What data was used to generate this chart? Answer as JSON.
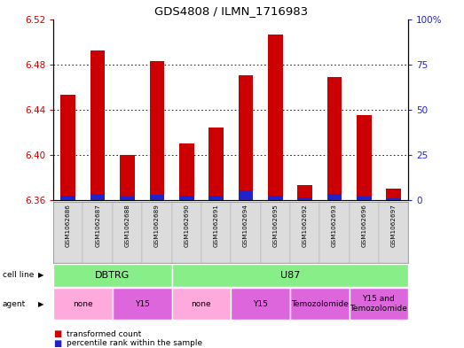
{
  "title": "GDS4808 / ILMN_1716983",
  "samples": [
    "GSM1062686",
    "GSM1062687",
    "GSM1062688",
    "GSM1062689",
    "GSM1062690",
    "GSM1062691",
    "GSM1062694",
    "GSM1062695",
    "GSM1062692",
    "GSM1062693",
    "GSM1062696",
    "GSM1062697"
  ],
  "red_values": [
    6.453,
    6.492,
    6.4,
    6.483,
    6.41,
    6.424,
    6.47,
    6.506,
    6.373,
    6.469,
    6.435,
    6.37
  ],
  "blue_values": [
    2.5,
    3.5,
    2.0,
    3.0,
    2.5,
    2.5,
    5.5,
    2.5,
    1.5,
    3.5,
    2.0,
    1.0
  ],
  "ymin": 6.36,
  "ymax": 6.52,
  "yticks": [
    6.36,
    6.4,
    6.44,
    6.48,
    6.52
  ],
  "cell_line_groups": [
    {
      "label": "DBTRG",
      "start": 0,
      "end": 4,
      "color": "#90EE90"
    },
    {
      "label": "U87",
      "start": 4,
      "end": 12,
      "color": "#90EE90"
    }
  ],
  "agent_groups": [
    {
      "label": "none",
      "start": 0,
      "end": 2,
      "color_none": true
    },
    {
      "label": "Y15",
      "start": 2,
      "end": 4,
      "color_none": false
    },
    {
      "label": "none",
      "start": 4,
      "end": 6,
      "color_none": true
    },
    {
      "label": "Y15",
      "start": 6,
      "end": 8,
      "color_none": false
    },
    {
      "label": "Temozolomide",
      "start": 8,
      "end": 10,
      "color_none": false
    },
    {
      "label": "Y15 and\nTemozolomide",
      "start": 10,
      "end": 12,
      "color_none": false
    }
  ],
  "bar_color_red": "#CC0000",
  "bar_color_blue": "#2222CC",
  "bar_width": 0.5,
  "tick_label_color_left": "#CC0000",
  "tick_label_color_right": "#2222CC",
  "agent_color_none": "#FFAADD",
  "agent_color_y15": "#DD66DD",
  "cell_line_color": "#88EE88"
}
